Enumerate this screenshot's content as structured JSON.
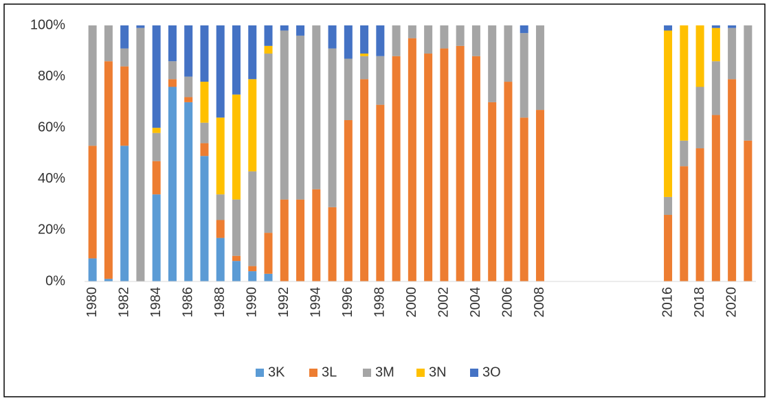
{
  "chart_data": {
    "type": "bar",
    "stacked": true,
    "categories": [
      "1980",
      null,
      "1982",
      null,
      "1984",
      null,
      "1986",
      null,
      "1988",
      null,
      "1990",
      null,
      "1992",
      null,
      "1994",
      null,
      "1996",
      null,
      "1998",
      null,
      "2000",
      null,
      "2002",
      null,
      "2004",
      null,
      "2006",
      null,
      "2008",
      null,
      null,
      null,
      null,
      null,
      null,
      null,
      "2016",
      null,
      "2018",
      null,
      "2020",
      null
    ],
    "series": [
      {
        "name": "3K",
        "color": "#5b9bd5",
        "values": [
          9,
          1,
          53,
          0,
          34,
          76,
          70,
          49,
          17,
          8,
          4,
          3,
          0,
          0,
          0,
          0,
          0,
          0,
          0,
          0,
          0,
          0,
          0,
          0,
          0,
          0,
          0,
          0,
          0,
          null,
          null,
          null,
          null,
          null,
          null,
          null,
          0,
          0,
          0,
          0,
          0,
          0
        ]
      },
      {
        "name": "3L",
        "color": "#ed7d31",
        "values": [
          44,
          85,
          31,
          0,
          13,
          3,
          2,
          5,
          7,
          2,
          2,
          16,
          32,
          32,
          36,
          29,
          63,
          79,
          69,
          88,
          95,
          89,
          91,
          92,
          88,
          70,
          78,
          64,
          67,
          null,
          null,
          null,
          null,
          null,
          null,
          null,
          26,
          45,
          52,
          65,
          79,
          55
        ]
      },
      {
        "name": "3M",
        "color": "#a5a5a5",
        "values": [
          47,
          14,
          7,
          99,
          11,
          7,
          8,
          8,
          10,
          22,
          37,
          70,
          66,
          64,
          64,
          62,
          24,
          9,
          19,
          12,
          5,
          11,
          9,
          8,
          12,
          30,
          22,
          33,
          33,
          null,
          null,
          null,
          null,
          null,
          null,
          null,
          7,
          10,
          24,
          21,
          20,
          45
        ]
      },
      {
        "name": "3N",
        "color": "#ffc000",
        "values": [
          0,
          0,
          0,
          0,
          2,
          0,
          0,
          16,
          30,
          41,
          36,
          3,
          0,
          0,
          0,
          0,
          0,
          1,
          0,
          0,
          0,
          0,
          0,
          0,
          0,
          0,
          0,
          0,
          0,
          null,
          null,
          null,
          null,
          null,
          null,
          null,
          65,
          45,
          24,
          13,
          0,
          0
        ]
      },
      {
        "name": "3O",
        "color": "#4472c4",
        "values": [
          0,
          0,
          9,
          1,
          40,
          14,
          20,
          22,
          36,
          27,
          21,
          8,
          2,
          4,
          0,
          9,
          13,
          11,
          12,
          0,
          0,
          0,
          0,
          0,
          0,
          0,
          0,
          3,
          0,
          null,
          null,
          null,
          null,
          null,
          null,
          null,
          2,
          0,
          0,
          1,
          1,
          0
        ]
      }
    ],
    "ylim": [
      0,
      100
    ],
    "yticks": [
      {
        "value": 0,
        "label": "0%"
      },
      {
        "value": 20,
        "label": "20%"
      },
      {
        "value": 40,
        "label": "40%"
      },
      {
        "value": 60,
        "label": "60%"
      },
      {
        "value": 80,
        "label": "80%"
      },
      {
        "value": 100,
        "label": "100%"
      }
    ],
    "grid": false,
    "legend": "bottom"
  }
}
